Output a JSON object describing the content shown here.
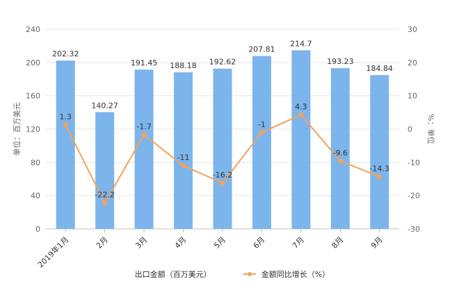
{
  "chart_data": {
    "type": "bar",
    "categories": [
      "2019年1月",
      "2月",
      "3月",
      "4月",
      "5月",
      "6月",
      "7月",
      "8月",
      "9月"
    ],
    "series": [
      {
        "name": "出口金额（百万美元）",
        "type": "bar",
        "axis": "left",
        "color": "#7cb5ec",
        "values": [
          202.32,
          140.27,
          191.45,
          188.18,
          192.62,
          207.81,
          214.7,
          193.23,
          184.84
        ],
        "labels": [
          "202.32",
          "140.27",
          "191.45",
          "188.18",
          "192.62",
          "207.81",
          "214.7",
          "193.23",
          "184.84"
        ]
      },
      {
        "name": "金额同比增长（%）",
        "type": "line",
        "axis": "right",
        "color": "#f5a15a",
        "values": [
          1.3,
          -22.2,
          -1.7,
          -11,
          -16.2,
          -1,
          4.3,
          -9.6,
          -14.3
        ],
        "labels": [
          "1.3",
          "-22.2",
          "-1.7",
          "-11",
          "-16.2",
          "-1",
          "4.3",
          "-9.6",
          "-14.3"
        ]
      }
    ],
    "ylabel": "单位：百万美元",
    "ylabel_right": "%：单位",
    "ylim": [
      0,
      240
    ],
    "ylim_right": [
      -30,
      30
    ],
    "yticks": [
      0,
      40,
      80,
      120,
      160,
      200,
      240
    ],
    "yticks_right": [
      -30,
      -20,
      -10,
      0,
      10,
      20,
      30
    ],
    "grid": true,
    "legend_position": "bottom-center"
  }
}
